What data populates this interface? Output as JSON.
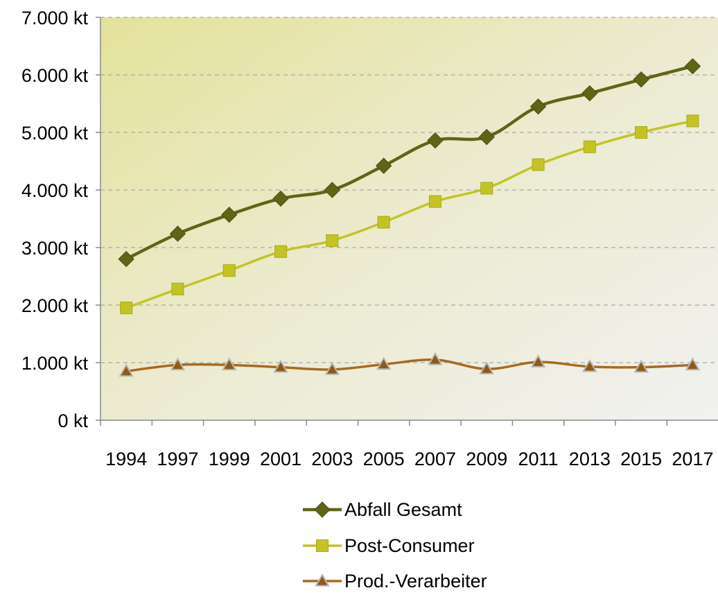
{
  "chart_data": {
    "type": "line",
    "categories": [
      "1994",
      "1997",
      "1999",
      "2001",
      "2003",
      "2005",
      "2007",
      "2009",
      "2011",
      "2013",
      "2015",
      "2017"
    ],
    "ylim": [
      0,
      7000
    ],
    "y_ticks": [
      0,
      1000,
      2000,
      3000,
      4000,
      5000,
      6000,
      7000
    ],
    "y_tick_labels": [
      "0 kt",
      "1.000 kt",
      "2.000 kt",
      "3.000 kt",
      "4.000 kt",
      "5.000 kt",
      "6.000 kt",
      "7.000 kt"
    ],
    "grid": "horizontal dashed",
    "legend_position": "bottom",
    "series": [
      {
        "name": "Abfall Gesamt",
        "marker": "diamond",
        "color": "#5e6517",
        "values": [
          2800,
          3240,
          3570,
          3850,
          4000,
          4420,
          4860,
          4920,
          5450,
          5680,
          5920,
          6150
        ]
      },
      {
        "name": "Post-Consumer",
        "marker": "square",
        "color": "#c3c424",
        "values": [
          1950,
          2280,
          2600,
          2930,
          3120,
          3440,
          3800,
          4030,
          4440,
          4750,
          5000,
          5200
        ]
      },
      {
        "name": "Prod.-Verarbeiter",
        "marker": "triangle",
        "color": "#a86a1e",
        "values": [
          850,
          960,
          960,
          920,
          880,
          970,
          1050,
          890,
          1010,
          930,
          920,
          960
        ]
      }
    ]
  }
}
